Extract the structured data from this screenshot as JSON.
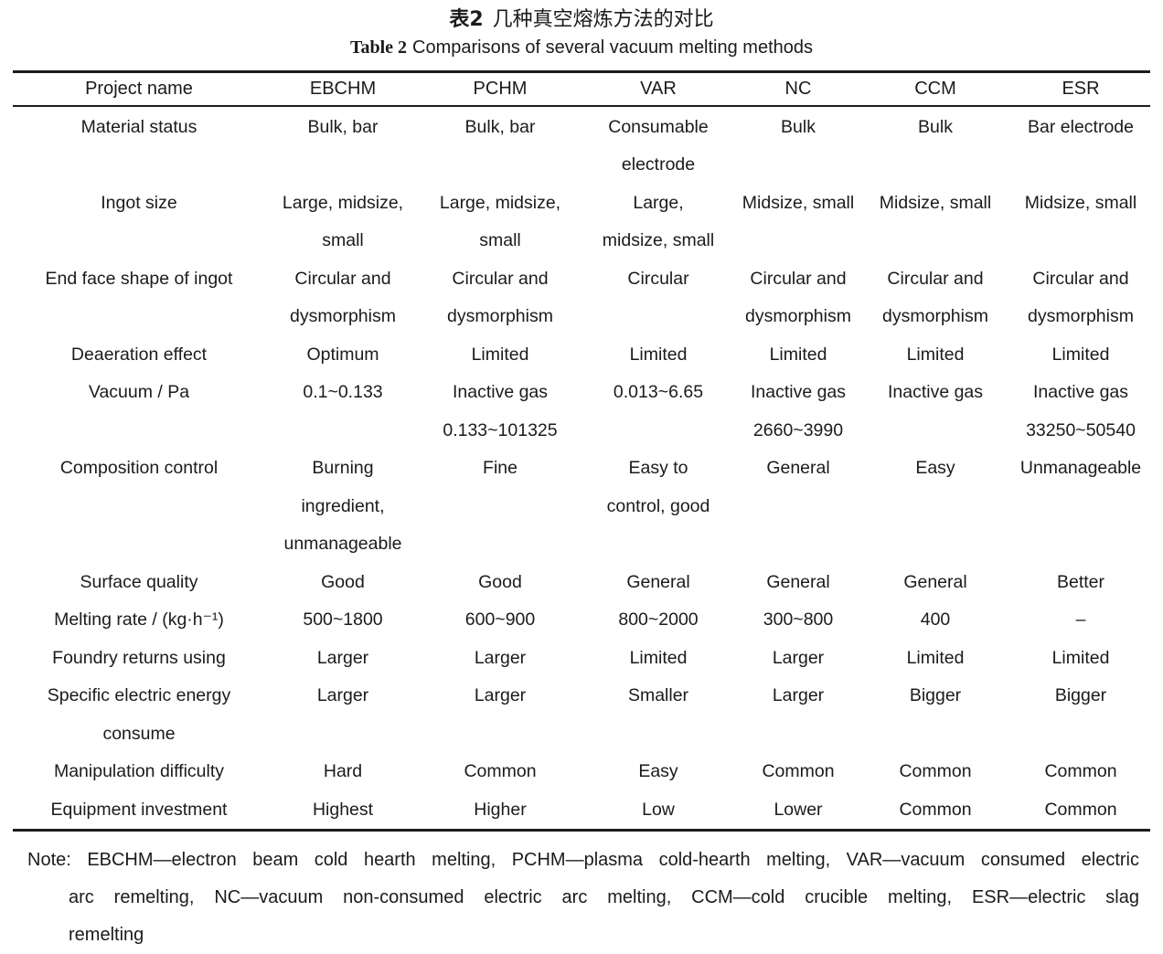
{
  "title": {
    "zh_label": "表2",
    "zh_text": "几种真空熔炼方法的对比",
    "en_label": "Table 2",
    "en_text": "Comparisons of several vacuum melting methods"
  },
  "table": {
    "columns": [
      "Project name",
      "EBCHM",
      "PCHM",
      "VAR",
      "NC",
      "CCM",
      "ESR"
    ],
    "rows": [
      {
        "label": "Material status",
        "cells": [
          "Bulk, bar",
          "Bulk, bar",
          "Consumable\nelectrode",
          "Bulk",
          "Bulk",
          "Bar electrode"
        ]
      },
      {
        "label": "Ingot size",
        "cells": [
          "Large, midsize,\nsmall",
          "Large, midsize,\nsmall",
          "Large,\nmidsize, small",
          "Midsize, small",
          "Midsize, small",
          "Midsize, small"
        ]
      },
      {
        "label": "End face shape of ingot",
        "cells": [
          "Circular and\ndysmorphism",
          "Circular and\ndysmorphism",
          "Circular",
          "Circular and\ndysmorphism",
          "Circular and\ndysmorphism",
          "Circular and\ndysmorphism"
        ]
      },
      {
        "label": "Deaeration effect",
        "cells": [
          "Optimum",
          "Limited",
          "Limited",
          "Limited",
          "Limited",
          "Limited"
        ]
      },
      {
        "label": "Vacuum / Pa",
        "cells": [
          "0.1~0.133",
          "Inactive gas\n0.133~101325",
          "0.013~6.65",
          "Inactive gas\n2660~3990",
          "Inactive gas",
          "Inactive gas\n33250~50540"
        ]
      },
      {
        "label": "Composition control",
        "cells": [
          "Burning\ningredient,\nunmanageable",
          "Fine",
          "Easy to\ncontrol, good",
          "General",
          "Easy",
          "Unmanageable"
        ]
      },
      {
        "label": "Surface quality",
        "cells": [
          "Good",
          "Good",
          "General",
          "General",
          "General",
          "Better"
        ]
      },
      {
        "label": "Melting rate / (kg·h⁻¹)",
        "cells": [
          "500~1800",
          "600~900",
          "800~2000",
          "300~800",
          "400",
          "–"
        ]
      },
      {
        "label": "Foundry returns using",
        "cells": [
          "Larger",
          "Larger",
          "Limited",
          "Larger",
          "Limited",
          "Limited"
        ]
      },
      {
        "label": "Specific electric energy\nconsume",
        "cells": [
          "Larger",
          "Larger",
          "Smaller",
          "Larger",
          "Bigger",
          "Bigger"
        ]
      },
      {
        "label": "Manipulation difficulty",
        "cells": [
          "Hard",
          "Common",
          "Easy",
          "Common",
          "Common",
          "Common"
        ]
      },
      {
        "label": "Equipment investment",
        "cells": [
          "Highest",
          "Higher",
          "Low",
          "Lower",
          "Common",
          "Common"
        ]
      }
    ]
  },
  "note": {
    "lines": [
      "Note: EBCHM—electron beam cold hearth melting, PCHM—plasma cold-hearth melting, VAR—vacuum consumed electric",
      "arc remelting, NC—vacuum non-consumed electric arc melting, CCM—cold crucible melting, ESR—electric slag",
      "remelting"
    ]
  }
}
